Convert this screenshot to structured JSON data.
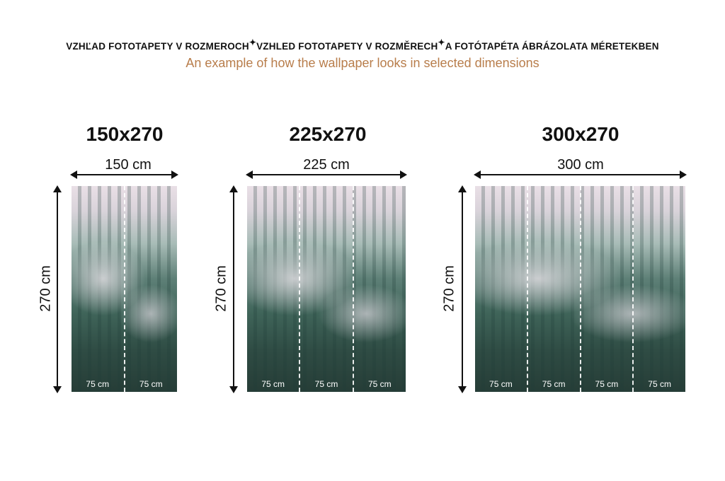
{
  "header": {
    "parts": [
      "VZHĽAD FOTOTAPETY V ROZMEROCH",
      "VZHLED FOTOTAPETY V ROZMĚRECH",
      "A FOTÓTAPÉTA ÁBRÁZOLATA MÉRETEKBEN"
    ],
    "separator_icon": "sparkle-icon",
    "subtitle": "An example of how the wallpaper looks in selected dimensions",
    "subtitle_color": "#b87d4b"
  },
  "panels": [
    {
      "title": "150x270",
      "width": "150 cm",
      "height": "270 cm",
      "strips": [
        "75 cm",
        "75 cm"
      ]
    },
    {
      "title": "225x270",
      "width": "225 cm",
      "height": "270 cm",
      "strips": [
        "75 cm",
        "75 cm",
        "75 cm"
      ]
    },
    {
      "title": "300x270",
      "width": "300 cm",
      "height": "270 cm",
      "strips": [
        "75 cm",
        "75 cm",
        "75 cm",
        "75 cm"
      ]
    }
  ]
}
